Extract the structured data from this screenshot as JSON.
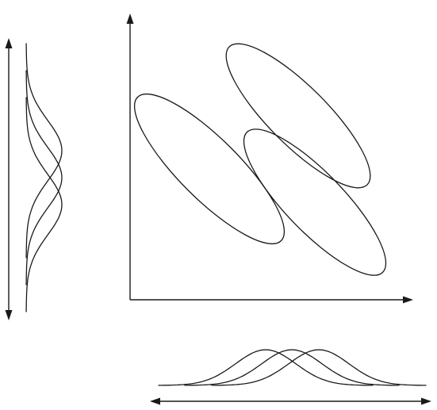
{
  "diagram": {
    "kind": "bivariate-distribution-clusters",
    "ellipse_count": 3,
    "marginal_x_curve_count": 3,
    "marginal_y_curve_count": 3,
    "stroke_color": "#1a1a1a",
    "background_color": "#ffffff"
  }
}
